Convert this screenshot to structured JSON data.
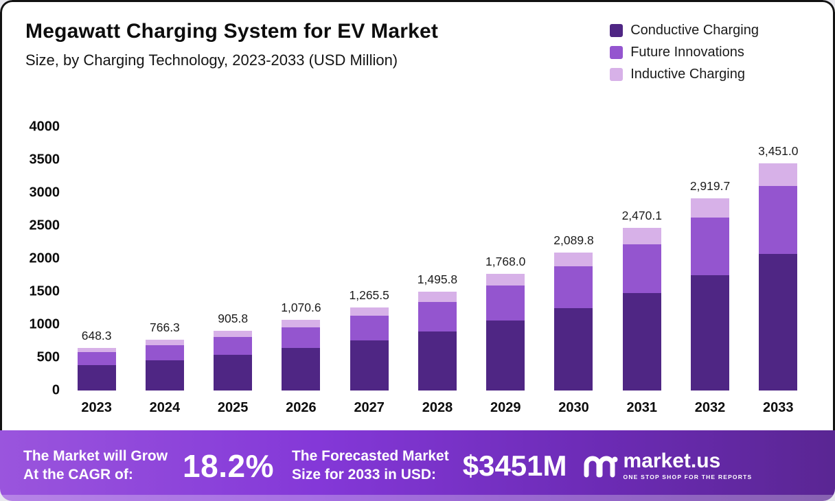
{
  "title": "Megawatt Charging System for EV Market",
  "subtitle": "Size, by Charging Technology, 2023-2033 (USD Million)",
  "legend": [
    {
      "label": "Conductive Charging",
      "color": "#4f2684"
    },
    {
      "label": "Future Innovations",
      "color": "#9455cf"
    },
    {
      "label": "Inductive Charging",
      "color": "#d7b1e8"
    }
  ],
  "chart_data": {
    "type": "bar",
    "stacked": true,
    "title": "Megawatt Charging System for EV Market Size, by Charging Technology, 2023-2033 (USD Million)",
    "categories": [
      "2023",
      "2024",
      "2025",
      "2026",
      "2027",
      "2028",
      "2029",
      "2030",
      "2031",
      "2032",
      "2033"
    ],
    "totals": [
      648.3,
      766.3,
      905.8,
      1070.6,
      1265.5,
      1495.8,
      1768.0,
      2089.8,
      2470.1,
      2919.7,
      3451.0
    ],
    "total_labels": [
      "648.3",
      "766.3",
      "905.8",
      "1,070.6",
      "1,265.5",
      "1,495.8",
      "1,768.0",
      "2,089.8",
      "2,470.1",
      "2,919.7",
      "3,451.0"
    ],
    "series": [
      {
        "name": "Conductive Charging",
        "color": "#4f2684",
        "values": [
          389.0,
          459.8,
          543.5,
          642.4,
          759.3,
          897.5,
          1060.8,
          1253.9,
          1482.1,
          1751.8,
          2070.6
        ]
      },
      {
        "name": "Future Innovations",
        "color": "#9455cf",
        "values": [
          194.5,
          229.9,
          271.7,
          321.2,
          379.7,
          448.7,
          530.4,
          626.9,
          741.0,
          875.9,
          1035.3
        ]
      },
      {
        "name": "Inductive Charging",
        "color": "#d7b1e8",
        "values": [
          64.8,
          76.6,
          90.6,
          107.0,
          126.5,
          149.6,
          176.8,
          209.0,
          247.0,
          292.0,
          345.1
        ]
      }
    ],
    "xlabel": "",
    "ylabel": "",
    "ylim": [
      0,
      4000
    ],
    "yticks": [
      4000,
      3500,
      3000,
      2500,
      2000,
      1500,
      1000,
      500,
      0
    ],
    "grid": false,
    "legend_position": "top-right"
  },
  "banner": {
    "left_line1": "The Market will Grow",
    "left_line2": "At the CAGR of:",
    "cagr": "18.2%",
    "mid_line1": "The Forecasted Market",
    "mid_line2": "Size for 2033 in USD:",
    "forecast": "$3451M",
    "brand": "market.us",
    "brand_tagline": "ONE STOP SHOP FOR THE REPORTS"
  }
}
